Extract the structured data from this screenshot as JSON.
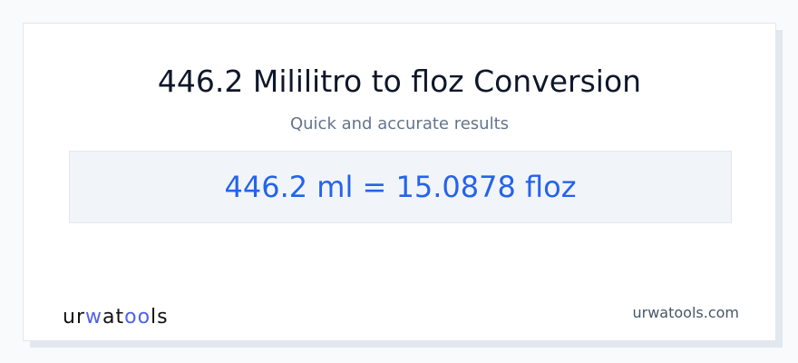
{
  "title": "446.2 Mililitro to floz Conversion",
  "subtitle": "Quick and accurate results",
  "result": "446.2 ml = 15.0878 floz",
  "logo": {
    "part1": "ur",
    "part2": "w",
    "part3": "at",
    "part4": "oo",
    "part5": "ls"
  },
  "site": "urwatools.com",
  "colors": {
    "accent": "#2563eb",
    "logo_accent": "#4f63e6"
  }
}
